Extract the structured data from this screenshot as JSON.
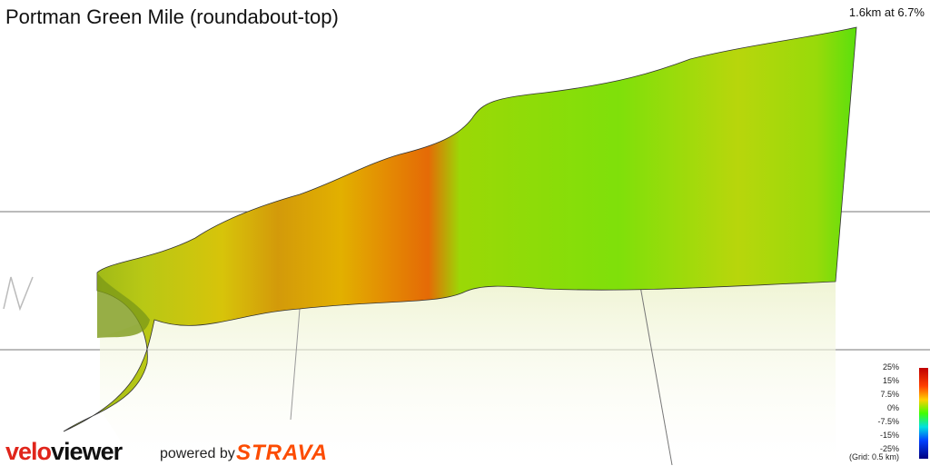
{
  "header": {
    "title": "Portman Green Mile (roundabout-top)",
    "summary": "1.6km at 6.7%"
  },
  "legend": {
    "labels": [
      "25%",
      "15%",
      "7.5%",
      "0%",
      "-7.5%",
      "-15%",
      "-25%"
    ],
    "grid_note": "(Grid: 0.5 km)"
  },
  "footer": {
    "brand_a": "velo",
    "brand_b": "viewer",
    "powered": "powered by",
    "strava": "STRAVA"
  }
}
